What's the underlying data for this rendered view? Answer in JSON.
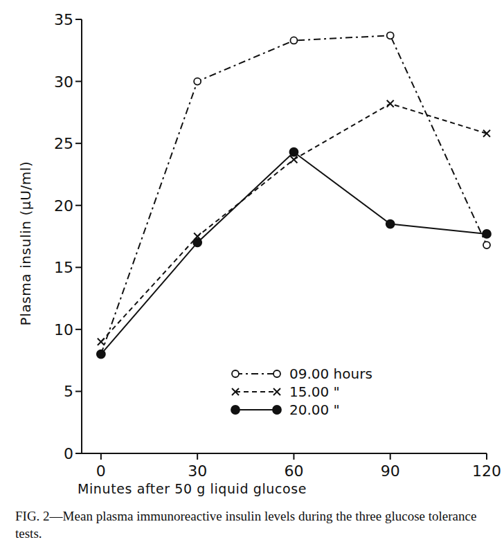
{
  "chart_data": {
    "type": "line",
    "title": "FIG. 2—Mean plasma immunoreactive insulin levels during the three glucose tolerance tests.",
    "x_label": "Minutes after 50 g liquid glucose",
    "y_label": "Plasma insulin (μU/ml)",
    "x": [
      0,
      30,
      60,
      90,
      120
    ],
    "series": [
      {
        "name": "09.00 hours",
        "color": "#111111",
        "marker": "open-circle",
        "line_style": "dash-dot",
        "values": [
          8,
          30,
          33.3,
          33.7,
          16.8
        ]
      },
      {
        "name": "15.00 \"",
        "color": "#111111",
        "marker": "x",
        "line_style": "dashed",
        "values": [
          9,
          17.5,
          23.7,
          28.2,
          25.8
        ]
      },
      {
        "name": "20.00 \"",
        "color": "#111111",
        "marker": "filled-circle",
        "line_style": "solid",
        "values": [
          8,
          17,
          24.3,
          18.5,
          17.7
        ]
      }
    ],
    "xlim": [
      -6,
      120
    ],
    "xticks": [
      0,
      30,
      60,
      90,
      120
    ],
    "ylim": [
      0,
      35
    ],
    "yticks": [
      0,
      5,
      10,
      15,
      20,
      25,
      30,
      35
    ],
    "grid": false,
    "legend": "lower right"
  }
}
